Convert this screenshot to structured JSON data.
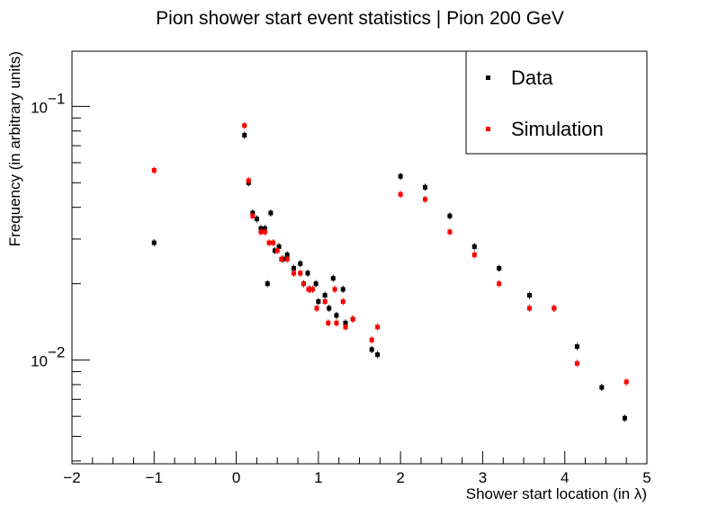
{
  "chart_data": {
    "type": "scatter",
    "title": "Pion shower start event statistics | Pion 200 GeV",
    "xlabel": "Shower start location (in λ)",
    "ylabel": "Frequency (in arbitrary units)",
    "xlim": [
      -2,
      5
    ],
    "ylim": [
      0.0039,
      0.165
    ],
    "yscale": "log",
    "grid": false,
    "legend_position": "top-right",
    "x_ticks": [
      -2,
      -1,
      0,
      1,
      2,
      3,
      4,
      5
    ],
    "x_tick_labels": [
      "−2",
      "−1",
      "0",
      "1",
      "2",
      "3",
      "4",
      "5"
    ],
    "y_ticks": [
      {
        "base": "10",
        "exp": "−1",
        "value": 0.1
      },
      {
        "base": "10",
        "exp": "−2",
        "value": 0.01
      }
    ],
    "series": [
      {
        "name": "Data",
        "color": "#000000",
        "points": [
          [
            -1.0,
            0.029
          ],
          [
            0.1,
            0.077
          ],
          [
            0.15,
            0.05
          ],
          [
            0.2,
            0.038
          ],
          [
            0.25,
            0.036
          ],
          [
            0.3,
            0.033
          ],
          [
            0.35,
            0.033
          ],
          [
            0.38,
            0.02
          ],
          [
            0.42,
            0.038
          ],
          [
            0.47,
            0.027
          ],
          [
            0.52,
            0.028
          ],
          [
            0.57,
            0.025
          ],
          [
            0.62,
            0.026
          ],
          [
            0.7,
            0.023
          ],
          [
            0.78,
            0.024
          ],
          [
            0.82,
            0.02
          ],
          [
            0.87,
            0.022
          ],
          [
            0.9,
            0.019
          ],
          [
            0.97,
            0.02
          ],
          [
            1.0,
            0.017
          ],
          [
            1.08,
            0.018
          ],
          [
            1.13,
            0.016
          ],
          [
            1.18,
            0.021
          ],
          [
            1.22,
            0.015
          ],
          [
            1.3,
            0.019
          ],
          [
            1.33,
            0.014
          ],
          [
            1.42,
            0.0145
          ],
          [
            1.65,
            0.011
          ],
          [
            1.72,
            0.0105
          ],
          [
            2.0,
            0.053
          ],
          [
            2.3,
            0.048
          ],
          [
            2.6,
            0.037
          ],
          [
            2.9,
            0.028
          ],
          [
            3.2,
            0.023
          ],
          [
            3.57,
            0.018
          ],
          [
            3.87,
            0.016
          ],
          [
            4.15,
            0.0113
          ],
          [
            4.45,
            0.0078
          ],
          [
            4.73,
            0.0059
          ]
        ]
      },
      {
        "name": "Simulation",
        "color": "#ff0000",
        "points": [
          [
            -1.0,
            0.056
          ],
          [
            0.1,
            0.084
          ],
          [
            0.15,
            0.051
          ],
          [
            0.2,
            0.037
          ],
          [
            0.3,
            0.032
          ],
          [
            0.35,
            0.032
          ],
          [
            0.4,
            0.029
          ],
          [
            0.45,
            0.029
          ],
          [
            0.5,
            0.027
          ],
          [
            0.55,
            0.025
          ],
          [
            0.62,
            0.025
          ],
          [
            0.7,
            0.022
          ],
          [
            0.78,
            0.022
          ],
          [
            0.82,
            0.02
          ],
          [
            0.88,
            0.019
          ],
          [
            0.93,
            0.019
          ],
          [
            0.98,
            0.016
          ],
          [
            1.08,
            0.017
          ],
          [
            1.12,
            0.014
          ],
          [
            1.2,
            0.019
          ],
          [
            1.22,
            0.014
          ],
          [
            1.3,
            0.017
          ],
          [
            1.33,
            0.0135
          ],
          [
            1.42,
            0.0145
          ],
          [
            1.65,
            0.012
          ],
          [
            1.72,
            0.0135
          ],
          [
            2.0,
            0.045
          ],
          [
            2.3,
            0.043
          ],
          [
            2.6,
            0.032
          ],
          [
            2.9,
            0.026
          ],
          [
            3.2,
            0.02
          ],
          [
            3.57,
            0.016
          ],
          [
            3.87,
            0.016
          ],
          [
            4.15,
            0.0097
          ],
          [
            4.75,
            0.0082
          ]
        ]
      }
    ]
  }
}
